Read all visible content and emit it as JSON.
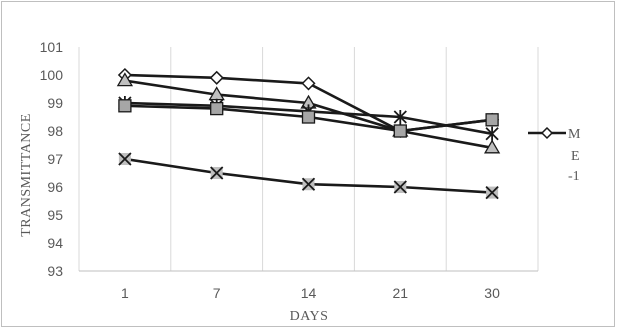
{
  "chart_data": {
    "type": "line",
    "title": "",
    "xlabel": "DAYS",
    "ylabel": "TRANSMITTANCE",
    "categories": [
      "1",
      "7",
      "14",
      "21",
      "30"
    ],
    "ylim": [
      93,
      101
    ],
    "yticks": [
      93,
      94,
      95,
      96,
      97,
      98,
      99,
      100,
      101
    ],
    "grid": "vertical",
    "legend_position": "right",
    "legend_lines": [
      "M",
      "E",
      "-1"
    ],
    "series": [
      {
        "marker": "diamond",
        "color": "#1a1a1a",
        "fill": "#ffffff",
        "values": [
          100.0,
          99.9,
          99.7,
          98.0,
          98.4
        ]
      },
      {
        "marker": "triangle",
        "color": "#1a1a1a",
        "fill": "#bfbfbf",
        "values": [
          99.8,
          99.3,
          99.0,
          98.0,
          97.4
        ]
      },
      {
        "marker": "x",
        "color": "#1a1a1a",
        "fill": "#bfbfbf",
        "values": [
          97.0,
          96.5,
          96.1,
          96.0,
          95.8
        ]
      },
      {
        "marker": "star",
        "color": "#1a1a1a",
        "fill": "#bfbfbf",
        "values": [
          99.0,
          98.9,
          98.7,
          98.5,
          97.9
        ]
      },
      {
        "marker": "square",
        "color": "#1a1a1a",
        "fill": "#a6a6a6",
        "values": [
          98.9,
          98.8,
          98.5,
          98.0,
          98.4
        ]
      }
    ]
  }
}
